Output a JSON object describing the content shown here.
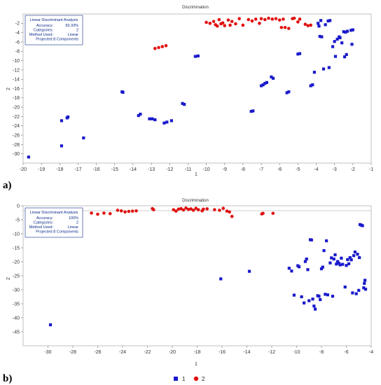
{
  "legend": {
    "entries": [
      {
        "label": "1",
        "color": "#1a1acc",
        "marker": "square"
      },
      {
        "label": "2",
        "color": "#e01010",
        "marker": "circle"
      }
    ]
  },
  "chart_data": [
    {
      "type": "scatter",
      "panel_label": "a)",
      "title": "Discrimination",
      "xlabel": "1",
      "ylabel": "2",
      "xlim": [
        -20,
        -1
      ],
      "ylim": [
        -32,
        0
      ],
      "xticks": [
        -20,
        -19,
        -18,
        -17,
        -16,
        -15,
        -14,
        -13,
        -12,
        -11,
        -10,
        -9,
        -8,
        -7,
        -6,
        -5,
        -4,
        -3,
        -2,
        -1
      ],
      "yticks": [
        -2,
        -4,
        -6,
        -8,
        -10,
        -12,
        -14,
        -16,
        -18,
        -20,
        -22,
        -24,
        -26,
        -28,
        -30
      ],
      "info_box": {
        "lines": [
          {
            "key": "Linear Discriminant Analysis",
            "value": ""
          },
          {
            "key": "Accuracy:",
            "value": "93.33%"
          },
          {
            "key": "Categories:",
            "value": "2"
          },
          {
            "key": "Method Used:",
            "value": "Linear"
          },
          {
            "key": "Projected:",
            "value": "8 Components"
          }
        ]
      },
      "series": [
        {
          "name": "1",
          "marker": "square",
          "color": "#1a1acc",
          "points": [
            [
              -19.7,
              -30.7
            ],
            [
              -17.9,
              -28.3
            ],
            [
              -17.9,
              -22.9
            ],
            [
              -17.6,
              -22.3
            ],
            [
              -17.55,
              -22.1
            ],
            [
              -16.7,
              -26.6
            ],
            [
              -14.6,
              -16.7
            ],
            [
              -14.55,
              -16.8
            ],
            [
              -13.7,
              -21.8
            ],
            [
              -13.6,
              -21.5
            ],
            [
              -13.1,
              -22.5
            ],
            [
              -12.95,
              -22.5
            ],
            [
              -12.8,
              -22.7
            ],
            [
              -12.3,
              -23.4
            ],
            [
              -12.15,
              -23.2
            ],
            [
              -11.9,
              -22.9
            ],
            [
              -11.3,
              -19.2
            ],
            [
              -11.2,
              -19.4
            ],
            [
              -10.6,
              -9.1
            ],
            [
              -10.45,
              -9.0
            ],
            [
              -7.55,
              -20.9
            ],
            [
              -7.45,
              -20.8
            ],
            [
              -7.0,
              -15.4
            ],
            [
              -6.9,
              -15.2
            ],
            [
              -6.8,
              -14.9
            ],
            [
              -6.7,
              -14.7
            ],
            [
              -6.45,
              -13.5
            ],
            [
              -6.35,
              -13.8
            ],
            [
              -5.6,
              -16.9
            ],
            [
              -5.5,
              -16.7
            ],
            [
              -5.0,
              -8.6
            ],
            [
              -4.9,
              -8.5
            ],
            [
              -4.3,
              -15.4
            ],
            [
              -4.2,
              -15.2
            ],
            [
              -4.1,
              -12.5
            ],
            [
              -3.9,
              -2.0
            ],
            [
              -3.85,
              -2.6
            ],
            [
              -3.8,
              -4.8
            ],
            [
              -3.75,
              -1.4
            ],
            [
              -3.7,
              -4.9
            ],
            [
              -3.6,
              -11.8
            ],
            [
              -3.5,
              -2.3
            ],
            [
              -3.35,
              -1.5
            ],
            [
              -3.25,
              -1.4
            ],
            [
              -3.3,
              -11.5
            ],
            [
              -3.1,
              -7.0
            ],
            [
              -3.0,
              -5.9
            ],
            [
              -2.95,
              -9.1
            ],
            [
              -2.85,
              -5.4
            ],
            [
              -2.75,
              -4.9
            ],
            [
              -2.7,
              -5.1
            ],
            [
              -2.6,
              -6.2
            ],
            [
              -2.5,
              -3.8
            ],
            [
              -2.45,
              -9.2
            ],
            [
              -2.4,
              -3.9
            ],
            [
              -2.35,
              -8.7
            ],
            [
              -2.3,
              -3.7
            ],
            [
              -2.1,
              -3.5
            ],
            [
              -2.05,
              -6.5
            ],
            [
              -2.0,
              -3.4
            ]
          ]
        },
        {
          "name": "2",
          "marker": "circle",
          "color": "#e01010",
          "points": [
            [
              -12.8,
              -7.4
            ],
            [
              -12.6,
              -7.2
            ],
            [
              -12.4,
              -7.0
            ],
            [
              -12.2,
              -6.8
            ],
            [
              -10.0,
              -1.8
            ],
            [
              -9.8,
              -2.0
            ],
            [
              -9.6,
              -1.6
            ],
            [
              -9.5,
              -2.3
            ],
            [
              -9.4,
              -2.6
            ],
            [
              -9.3,
              -1.2
            ],
            [
              -9.2,
              -2.1
            ],
            [
              -9.1,
              -1.9
            ],
            [
              -9.0,
              -2.5
            ],
            [
              -8.8,
              -1.3
            ],
            [
              -8.7,
              -2.4
            ],
            [
              -8.6,
              -1.6
            ],
            [
              -8.4,
              -2.1
            ],
            [
              -8.2,
              -1.0
            ],
            [
              -8.0,
              -2.4
            ],
            [
              -7.7,
              -1.2
            ],
            [
              -7.5,
              -1.5
            ],
            [
              -7.3,
              -1.1
            ],
            [
              -7.1,
              -2.0
            ],
            [
              -7.0,
              -1.0
            ],
            [
              -6.8,
              -1.2
            ],
            [
              -6.6,
              -0.9
            ],
            [
              -6.4,
              -1.1
            ],
            [
              -6.2,
              -1.0
            ],
            [
              -6.0,
              -1.3
            ],
            [
              -5.9,
              -2.9
            ],
            [
              -5.8,
              -1.1
            ],
            [
              -5.7,
              -2.9
            ],
            [
              -5.5,
              -3.1
            ],
            [
              -5.3,
              -1.0
            ],
            [
              -5.2,
              -0.9
            ],
            [
              -5.0,
              -1.7
            ],
            [
              -4.9,
              -1.1
            ],
            [
              -4.6,
              -2.2
            ],
            [
              -4.45,
              -2.5
            ],
            [
              -4.3,
              -2.4
            ]
          ]
        }
      ]
    },
    {
      "type": "scatter",
      "panel_label": "b)",
      "title": "Discrimination",
      "xlabel": "1",
      "ylabel": "2",
      "xlim": [
        -32,
        -4
      ],
      "ylim": [
        -50,
        0
      ],
      "xticks": [
        -30,
        -28,
        -26,
        -24,
        -22,
        -20,
        -18,
        -16,
        -14,
        -12,
        -10,
        -8,
        -6,
        -4
      ],
      "yticks": [
        0,
        -5,
        -10,
        -15,
        -20,
        -25,
        -30,
        -35,
        -40,
        -45
      ],
      "info_box": {
        "lines": [
          {
            "key": "Linear Discriminant Analysis",
            "value": ""
          },
          {
            "key": "Accuracy:",
            "value": "100%"
          },
          {
            "key": "Categories:",
            "value": "2"
          },
          {
            "key": "Method Used:",
            "value": "Linear"
          },
          {
            "key": "Projected:",
            "value": "8 Components"
          }
        ]
      },
      "series": [
        {
          "name": "1",
          "marker": "square",
          "color": "#1a1acc",
          "points": [
            [
              -29.8,
              -42.5
            ],
            [
              -16.1,
              -26.1
            ],
            [
              -13.8,
              -23.4
            ],
            [
              -10.6,
              -22.3
            ],
            [
              -10.4,
              -23.3
            ],
            [
              -10.2,
              -31.9
            ],
            [
              -9.9,
              -21.4
            ],
            [
              -9.8,
              -21.8
            ],
            [
              -9.6,
              -32.5
            ],
            [
              -9.4,
              -34.7
            ],
            [
              -9.3,
              -19.9
            ],
            [
              -9.2,
              -19.0
            ],
            [
              -9.1,
              -22.8
            ],
            [
              -9.0,
              -33.9
            ],
            [
              -8.9,
              -12.1
            ],
            [
              -8.8,
              -12.2
            ],
            [
              -8.7,
              -33.3
            ],
            [
              -8.6,
              -35.8
            ],
            [
              -8.5,
              -36.9
            ],
            [
              -8.3,
              -32.1
            ],
            [
              -8.2,
              -32.3
            ],
            [
              -8.1,
              -33.5
            ],
            [
              -8.0,
              -22.5
            ],
            [
              -7.9,
              -21.9
            ],
            [
              -7.8,
              -16.0
            ],
            [
              -7.7,
              -31.6
            ],
            [
              -7.6,
              -12.5
            ],
            [
              -7.5,
              -31.8
            ],
            [
              -7.3,
              -20.4
            ],
            [
              -7.2,
              -18.6
            ],
            [
              -7.1,
              -32.3
            ],
            [
              -7.0,
              -19.0
            ],
            [
              -6.9,
              -17.5
            ],
            [
              -6.8,
              -20.8
            ],
            [
              -6.7,
              -19.9
            ],
            [
              -6.6,
              -20.5
            ],
            [
              -6.5,
              -21.1
            ],
            [
              -6.4,
              -18.7
            ],
            [
              -6.3,
              -20.9
            ],
            [
              -6.1,
              -29.0
            ],
            [
              -6.0,
              -21.3
            ],
            [
              -5.9,
              -19.2
            ],
            [
              -5.8,
              -20.7
            ],
            [
              -5.7,
              -18.5
            ],
            [
              -5.6,
              -19.3
            ],
            [
              -5.5,
              -31.1
            ],
            [
              -5.4,
              -17.8
            ],
            [
              -5.3,
              -16.5
            ],
            [
              -5.2,
              -31.4
            ],
            [
              -5.1,
              -17.3
            ],
            [
              -5.0,
              -30.2
            ],
            [
              -4.95,
              -18.5
            ],
            [
              -4.9,
              -6.7
            ],
            [
              -4.8,
              -6.9
            ],
            [
              -4.7,
              -7.1
            ],
            [
              -4.6,
              -29.3
            ],
            [
              -4.55,
              -27.7
            ],
            [
              -4.5,
              -26.6
            ],
            [
              -4.45,
              -29.8
            ]
          ]
        },
        {
          "name": "2",
          "marker": "circle",
          "color": "#e01010",
          "points": [
            [
              -26.5,
              -2.6
            ],
            [
              -26.0,
              -3.0
            ],
            [
              -25.5,
              -2.6
            ],
            [
              -25.0,
              -2.8
            ],
            [
              -24.4,
              -1.6
            ],
            [
              -24.1,
              -1.8
            ],
            [
              -23.8,
              -2.2
            ],
            [
              -23.5,
              -2.0
            ],
            [
              -23.2,
              -1.9
            ],
            [
              -22.9,
              -1.8
            ],
            [
              -21.6,
              -1.0
            ],
            [
              -21.5,
              -1.4
            ],
            [
              -19.9,
              -1.4
            ],
            [
              -19.7,
              -1.9
            ],
            [
              -19.5,
              -1.2
            ],
            [
              -19.3,
              -1.0
            ],
            [
              -19.1,
              -1.5
            ],
            [
              -18.9,
              -0.8
            ],
            [
              -18.7,
              -1.3
            ],
            [
              -18.5,
              -1.1
            ],
            [
              -18.3,
              -1.6
            ],
            [
              -18.1,
              -0.9
            ],
            [
              -17.9,
              -1.4
            ],
            [
              -17.6,
              -1.8
            ],
            [
              -17.5,
              -1.2
            ],
            [
              -17.2,
              -1.1
            ],
            [
              -16.6,
              -1.4
            ],
            [
              -16.2,
              -1.6
            ],
            [
              -15.9,
              -0.9
            ],
            [
              -15.6,
              -1.9
            ],
            [
              -15.4,
              -2.2
            ],
            [
              -15.2,
              -3.8
            ],
            [
              -12.8,
              -2.9
            ],
            [
              -12.7,
              -2.7
            ],
            [
              -11.9,
              -2.7
            ]
          ]
        }
      ]
    }
  ]
}
